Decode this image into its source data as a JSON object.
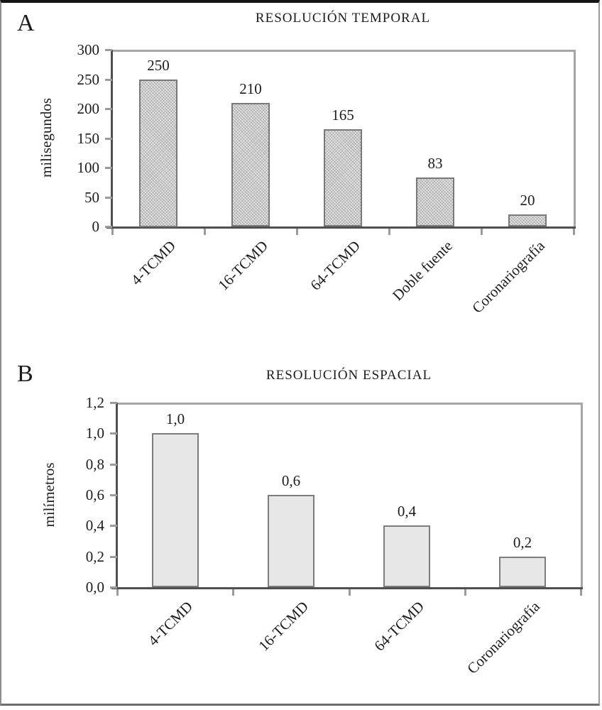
{
  "colors": {
    "axis": "#4f4f4f",
    "frame_line": "#a6a6a6",
    "tick": "#9b9b9b",
    "text": "#1c1c1c",
    "background": "#ffffff"
  },
  "chart_data": [
    {
      "type": "bar",
      "panel": "A",
      "title": "RESOLUCIÓN TEMPORAL",
      "ylabel": "milisegundos",
      "xlabel": "",
      "categories": [
        "4-TCMD",
        "16-TCMD",
        "64-TCMD",
        "Doble fuente",
        "Coronariografía"
      ],
      "values": [
        250,
        210,
        165,
        83,
        20
      ],
      "value_labels": [
        "250",
        "210",
        "165",
        "83",
        "20"
      ],
      "ylim": [
        0,
        300
      ],
      "ytick_values": [
        0,
        50,
        100,
        150,
        200,
        250,
        300
      ],
      "ytick_labels": [
        "0",
        "50",
        "100",
        "150",
        "200",
        "250",
        "300"
      ],
      "grid": "off",
      "legend": "none",
      "bar_style": "dotted-gray-pattern",
      "colors": {
        "bar_fill": "#cbcbcb",
        "bar_border": "#787878"
      }
    },
    {
      "type": "bar",
      "panel": "B",
      "title": "RESOLUCIÓN ESPACIAL",
      "ylabel": "milímetros",
      "xlabel": "",
      "categories": [
        "4-TCMD",
        "16-TCMD",
        "64-TCMD",
        "Coronariografía"
      ],
      "values": [
        1.0,
        0.6,
        0.4,
        0.2
      ],
      "value_labels": [
        "1,0",
        "0,6",
        "0,4",
        "0,2"
      ],
      "ylim": [
        0,
        1.2
      ],
      "ytick_values": [
        0,
        0.2,
        0.4,
        0.6,
        0.8,
        1.0,
        1.2
      ],
      "ytick_labels": [
        "0,0",
        "0,2",
        "0,4",
        "0,6",
        "0,8",
        "1,0",
        "1,2"
      ],
      "grid": "off",
      "legend": "none",
      "bar_style": "plain-light-gray",
      "colors": {
        "bar_fill": "#e7e7e7",
        "bar_border": "#7d7d7d"
      }
    }
  ]
}
